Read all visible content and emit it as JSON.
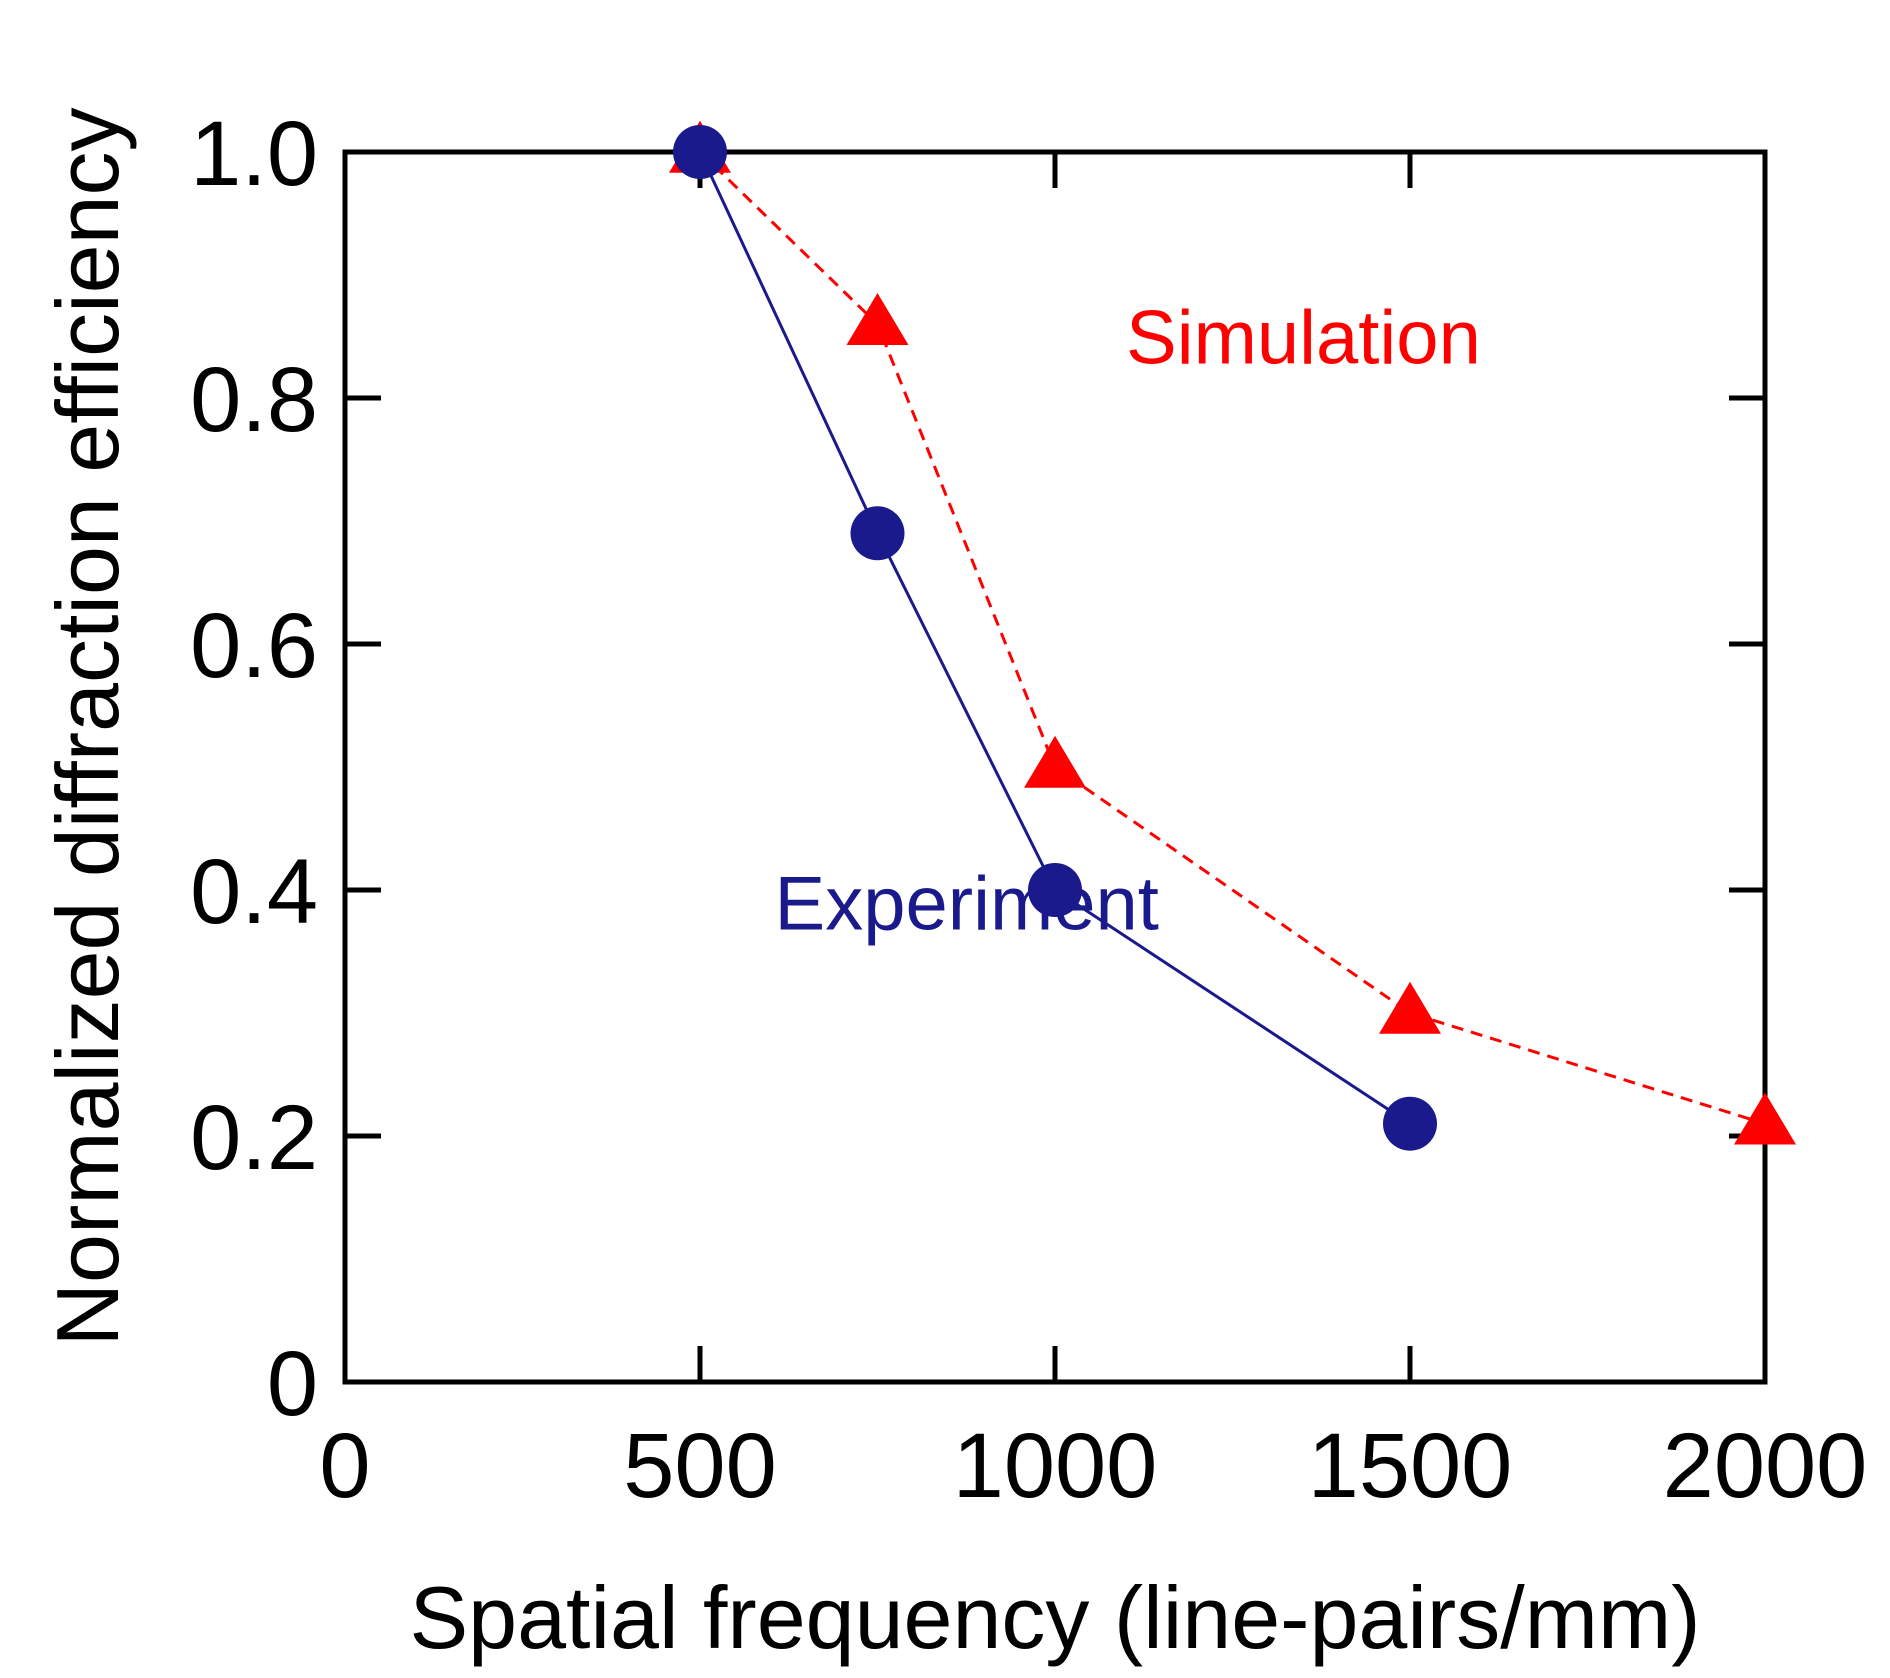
{
  "chart_data": {
    "type": "line",
    "title": "",
    "xlabel": "Spatial frequency (line-pairs/mm)",
    "ylabel": "Normalized diffraction efficiency",
    "xlim": [
      0,
      2000
    ],
    "ylim": [
      0,
      1.0
    ],
    "x_ticks": [
      {
        "value": 0,
        "label": "0"
      },
      {
        "value": 500,
        "label": "500"
      },
      {
        "value": 1000,
        "label": "1000"
      },
      {
        "value": 1500,
        "label": "1500"
      },
      {
        "value": 2000,
        "label": "2000"
      }
    ],
    "y_ticks": [
      {
        "value": 0,
        "label": "0"
      },
      {
        "value": 0.2,
        "label": "0.2"
      },
      {
        "value": 0.4,
        "label": "0.4"
      },
      {
        "value": 0.6,
        "label": "0.6"
      },
      {
        "value": 0.8,
        "label": "0.8"
      },
      {
        "value": 1.0,
        "label": "1.0"
      }
    ],
    "grid": false,
    "series": [
      {
        "name": "Simulation",
        "color": "#ff0000",
        "marker": "triangle",
        "line_style": "dashed",
        "x": [
          500,
          750,
          1000,
          1500,
          2000
        ],
        "values": [
          1.0,
          0.86,
          0.5,
          0.3,
          0.21
        ],
        "label_anchor": {
          "x": 1100,
          "y": 0.85
        }
      },
      {
        "name": "Experiment",
        "color": "#1a1a8c",
        "marker": "circle",
        "line_style": "solid",
        "x": [
          500,
          750,
          1000,
          1500
        ],
        "values": [
          1.0,
          0.69,
          0.4,
          0.21
        ],
        "label_anchor": {
          "x": 605,
          "y": 0.39
        }
      }
    ]
  }
}
